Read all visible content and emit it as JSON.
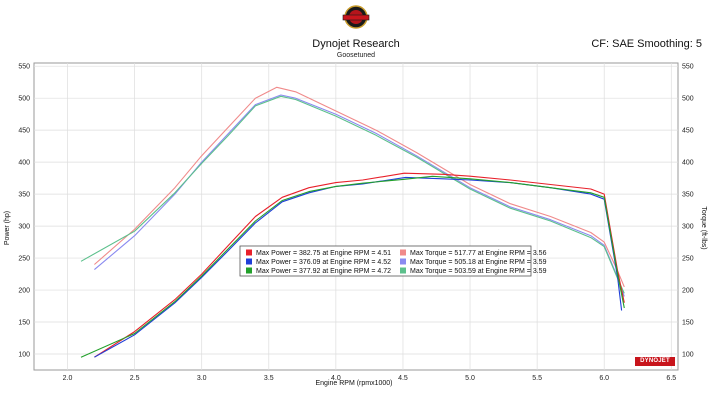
{
  "header": {
    "title": "Dynojet Research",
    "subtitle": "Goosetuned",
    "correction": "CF: SAE Smoothing: 5",
    "logo_icon": "badge-logo-icon",
    "brand_mark": "DYNOJET"
  },
  "chart_data": {
    "type": "line",
    "xlabel": "Engine RPM (rpmx1000)",
    "ylabel_left": "Power (hp)",
    "ylabel_right": "Torque (ft-lbs)",
    "xlim": [
      1.75,
      6.55
    ],
    "ylim": [
      75,
      555
    ],
    "x_ticks": [
      2.0,
      2.5,
      3.0,
      3.5,
      4.0,
      4.5,
      5.0,
      5.5,
      6.0,
      6.5
    ],
    "y_ticks": [
      100,
      150,
      200,
      250,
      300,
      350,
      400,
      450,
      500,
      550
    ],
    "grid": true,
    "legend_position": "center",
    "legend": [
      {
        "label": "Max Power = 382.75 at Engine RPM = 4.51",
        "color": "#e8202a"
      },
      {
        "label": "Max Torque = 517.77 at Engine RPM = 3.56",
        "color": "#f08a8a"
      },
      {
        "label": "Max Power = 376.09 at Engine RPM = 4.52",
        "color": "#1f3fd8"
      },
      {
        "label": "Max Torque = 505.18 at Engine RPM = 3.59",
        "color": "#8a8af0"
      },
      {
        "label": "Max Power = 377.92 at Engine RPM = 4.72",
        "color": "#22a02a"
      },
      {
        "label": "Max Torque = 503.59 at Engine RPM = 3.59",
        "color": "#5cc08c"
      }
    ],
    "series": [
      {
        "kind": "torque",
        "color": "#f08a8a",
        "x": [
          2.2,
          2.5,
          2.8,
          3.0,
          3.2,
          3.4,
          3.56,
          3.7,
          4.0,
          4.3,
          4.6,
          5.0,
          5.3,
          5.6,
          5.9,
          6.0,
          6.1,
          6.15
        ],
        "y": [
          240,
          295,
          360,
          410,
          455,
          500,
          517,
          510,
          480,
          450,
          415,
          365,
          335,
          315,
          290,
          275,
          230,
          205
        ]
      },
      {
        "kind": "torque",
        "color": "#8a8af0",
        "x": [
          2.2,
          2.5,
          2.8,
          3.0,
          3.2,
          3.4,
          3.59,
          3.7,
          4.0,
          4.3,
          4.6,
          5.0,
          5.3,
          5.6,
          5.9,
          6.0,
          6.1,
          6.15
        ],
        "y": [
          232,
          285,
          350,
          400,
          445,
          490,
          505,
          500,
          475,
          445,
          410,
          360,
          330,
          310,
          285,
          270,
          220,
          190
        ]
      },
      {
        "kind": "torque",
        "color": "#5cc08c",
        "x": [
          2.1,
          2.5,
          2.8,
          3.0,
          3.2,
          3.4,
          3.59,
          3.7,
          4.0,
          4.3,
          4.6,
          5.0,
          5.3,
          5.6,
          5.9,
          6.0,
          6.1,
          6.15
        ],
        "y": [
          245,
          292,
          352,
          398,
          442,
          488,
          503,
          498,
          472,
          442,
          408,
          358,
          328,
          308,
          282,
          268,
          218,
          195
        ]
      },
      {
        "kind": "power",
        "color": "#e8202a",
        "x": [
          2.2,
          2.5,
          2.8,
          3.0,
          3.2,
          3.4,
          3.6,
          3.8,
          4.0,
          4.2,
          4.51,
          4.8,
          5.0,
          5.3,
          5.6,
          5.9,
          6.0,
          6.1,
          6.15
        ],
        "y": [
          95,
          135,
          185,
          225,
          270,
          315,
          345,
          360,
          368,
          372,
          382.75,
          381,
          378,
          372,
          365,
          358,
          350,
          230,
          180
        ]
      },
      {
        "kind": "power",
        "color": "#1f3fd8",
        "x": [
          2.2,
          2.5,
          2.8,
          3.0,
          3.2,
          3.4,
          3.6,
          3.8,
          4.0,
          4.2,
          4.52,
          4.8,
          5.0,
          5.3,
          5.6,
          5.9,
          6.0,
          6.1,
          6.13
        ],
        "y": [
          95,
          130,
          180,
          220,
          262,
          305,
          338,
          352,
          362,
          366,
          376.09,
          374,
          372,
          368,
          360,
          350,
          342,
          220,
          168
        ]
      },
      {
        "kind": "power",
        "color": "#22a02a",
        "x": [
          2.1,
          2.5,
          2.8,
          3.0,
          3.2,
          3.4,
          3.6,
          3.8,
          4.0,
          4.2,
          4.5,
          4.72,
          5.0,
          5.3,
          5.6,
          5.9,
          6.0,
          6.1,
          6.15
        ],
        "y": [
          95,
          132,
          182,
          222,
          265,
          308,
          340,
          354,
          362,
          367,
          373,
          377.92,
          374,
          368,
          360,
          352,
          345,
          225,
          172
        ]
      }
    ]
  }
}
